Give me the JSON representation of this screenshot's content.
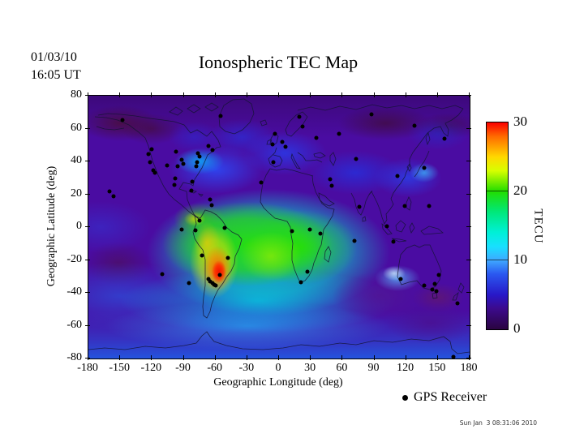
{
  "header": {
    "date_line1": "01/03/10",
    "date_line2": "16:05 UT",
    "title": "Ionospheric TEC Map"
  },
  "legend": {
    "label": "GPS Receiver",
    "marker": "black-dot"
  },
  "footer": {
    "timestamp": "Sun Jan  3 08:31:06 2010"
  },
  "chart_data": {
    "type": "heatmap",
    "title": "Ionospheric TEC Map",
    "xlabel": "Geographic Longitude (deg)",
    "ylabel": "Geographic Latitude (deg)",
    "xlim": [
      -180,
      180
    ],
    "ylim": [
      -80,
      80
    ],
    "x_ticks": [
      -180,
      -150,
      -120,
      -90,
      -60,
      -30,
      0,
      30,
      60,
      90,
      120,
      150,
      180
    ],
    "y_ticks": [
      80,
      60,
      40,
      20,
      0,
      -20,
      -40,
      -60,
      -80
    ],
    "grid": false,
    "colorbar": {
      "label": "TECU",
      "min": 0,
      "max": 30,
      "ticks": [
        30,
        20,
        10,
        0
      ],
      "gradient_stops": [
        {
          "value": 30,
          "color": "#fa0000"
        },
        {
          "value": 28,
          "color": "#ff6a00"
        },
        {
          "value": 25,
          "color": "#ffd800"
        },
        {
          "value": 23,
          "color": "#d8ff00"
        },
        {
          "value": 20,
          "color": "#22dd00"
        },
        {
          "value": 17,
          "color": "#00e87a"
        },
        {
          "value": 14,
          "color": "#00f0d8"
        },
        {
          "value": 12,
          "color": "#18e0ff"
        },
        {
          "value": 10,
          "color": "#3fa8ff"
        },
        {
          "value": 8,
          "color": "#2a58f0"
        },
        {
          "value": 5,
          "color": "#2818c8"
        },
        {
          "value": 3,
          "color": "#3c0a8c"
        },
        {
          "value": 0,
          "color": "#2a0440"
        }
      ]
    },
    "hotspots": [
      {
        "lon": -58,
        "lat": -27,
        "tecu": 30,
        "note": "peak TEC (red core) over southern South America"
      },
      {
        "lon": -62,
        "lat": -20,
        "tecu": 25,
        "note": "yellow-orange enhancement along the Andes"
      },
      {
        "lon": -25,
        "lat": -12,
        "tecu": 20,
        "note": "broad green equatorial band over Atlantic / Africa / South America"
      }
    ],
    "background_levels": {
      "polar_regions_tecu": "0-5 (dark purple)",
      "mid_latitudes_tecu": "5-12 (blue)",
      "equatorial_band_tecu": "15-25 (green to yellow)"
    },
    "gps_receivers": [
      [
        -148,
        65
      ],
      [
        -120.5,
        47.5
      ],
      [
        -123,
        44.5
      ],
      [
        -121.8,
        39.5
      ],
      [
        -118.7,
        34.7
      ],
      [
        -117,
        33.3
      ],
      [
        -105.5,
        37.6
      ],
      [
        -97.6,
        45.9
      ],
      [
        -91.7,
        40.8
      ],
      [
        -90.6,
        38.4
      ],
      [
        -95.7,
        36.9
      ],
      [
        -98.3,
        29.8
      ],
      [
        -98.8,
        25.7
      ],
      [
        -82.2,
        27.7
      ],
      [
        -76.8,
        44.9
      ],
      [
        -75,
        42.8
      ],
      [
        -77.5,
        39.4
      ],
      [
        -78.3,
        36.9
      ],
      [
        -63,
        46.8
      ],
      [
        -66.8,
        49.6
      ],
      [
        -55,
        67.6
      ],
      [
        -65,
        16.7
      ],
      [
        -82.7,
        22.4
      ],
      [
        -160,
        21.6
      ],
      [
        -156.5,
        18.8
      ],
      [
        -75.3,
        4
      ],
      [
        -63.6,
        13.2
      ],
      [
        -79,
        -2.2
      ],
      [
        -91.7,
        -1.6
      ],
      [
        -72.5,
        -17.5
      ],
      [
        -51,
        -0.5
      ],
      [
        -48.3,
        -18.6
      ],
      [
        -110.5,
        -28.8
      ],
      [
        -85,
        -34
      ],
      [
        -55.9,
        -29
      ],
      [
        -66.6,
        -31.4
      ],
      [
        -65.1,
        -33.1
      ],
      [
        -63,
        -34.1
      ],
      [
        -61,
        -35
      ],
      [
        -59.5,
        -35.8
      ],
      [
        18.9,
        67.3
      ],
      [
        22.4,
        61.2
      ],
      [
        -4.1,
        56.6
      ],
      [
        2.9,
        52
      ],
      [
        -5.9,
        50.5
      ],
      [
        6.1,
        48.9
      ],
      [
        35,
        54.3
      ],
      [
        56.4,
        56.6
      ],
      [
        -5.5,
        39.5
      ],
      [
        -17,
        27
      ],
      [
        48.2,
        29.2
      ],
      [
        49.5,
        25
      ],
      [
        12.5,
        -2.6
      ],
      [
        28.9,
        -1.6
      ],
      [
        39.1,
        -3.8
      ],
      [
        26.6,
        -27.2
      ],
      [
        20.7,
        -33.7
      ],
      [
        87,
        68.8
      ],
      [
        127.8,
        61.6
      ],
      [
        155.9,
        54
      ],
      [
        72.5,
        41.6
      ],
      [
        136.8,
        35.9
      ],
      [
        112,
        31
      ],
      [
        75.6,
        12.5
      ],
      [
        118.9,
        12.8
      ],
      [
        141.9,
        12.8
      ],
      [
        71.2,
        -8.2
      ],
      [
        101.6,
        0.6
      ],
      [
        108,
        -8.7
      ],
      [
        114.7,
        -31.7
      ],
      [
        150.9,
        -29
      ],
      [
        136.8,
        -35.4
      ],
      [
        147,
        -34.7
      ],
      [
        144.5,
        -38
      ],
      [
        148.8,
        -39.2
      ],
      [
        168.3,
        -46.5
      ],
      [
        164.5,
        -79
      ]
    ]
  }
}
